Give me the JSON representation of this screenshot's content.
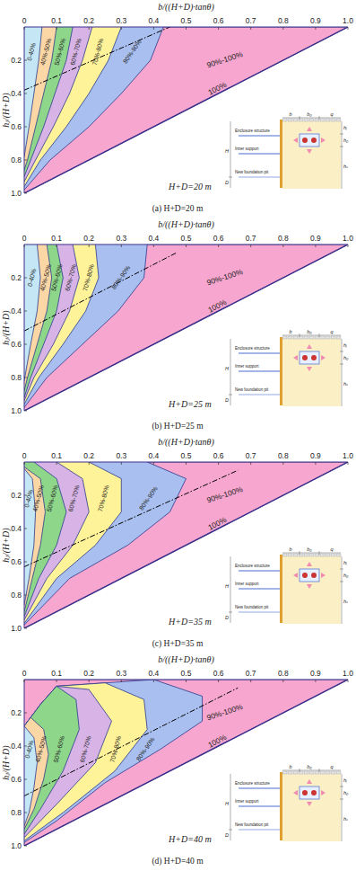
{
  "chart_data": [
    {
      "type": "contour",
      "title": "(a) H+D=20 m",
      "x_label": "b/((H+D)·tanθ)",
      "y_label": "hⱼ/(H+D)",
      "xlim": [
        0,
        1
      ],
      "ylim": [
        0,
        1
      ],
      "xticks": [
        0,
        0.1,
        0.2,
        0.3,
        0.4,
        0.5,
        0.6,
        0.7,
        0.8,
        0.9,
        {
          "value": 1,
          "label": "1.0"
        }
      ],
      "yticks": [
        0.2,
        0.4,
        0.6,
        0.8,
        {
          "value": 1,
          "label": "1.0"
        }
      ],
      "series": [
        {
          "name": "0-40%",
          "type": "area",
          "color": "#c4e6f5",
          "x": [
            0.055,
            0.045,
            0.03,
            0.015,
            0
          ],
          "values": [
            0,
            0.2,
            0.4,
            0.6,
            0.78
          ]
        },
        {
          "name": "40%-50%",
          "type": "area",
          "color": "#fcd7a6",
          "x": [
            0.1,
            0.085,
            0.06,
            0.035,
            0.01,
            0
          ],
          "values": [
            0,
            0.2,
            0.4,
            0.6,
            0.8,
            0.86
          ]
        },
        {
          "name": "50%-60%",
          "type": "area",
          "color": "#8ed68a",
          "x": [
            0.15,
            0.13,
            0.095,
            0.06,
            0.02,
            0
          ],
          "values": [
            0,
            0.2,
            0.4,
            0.6,
            0.8,
            0.9
          ]
        },
        {
          "name": "60%-70%",
          "type": "area",
          "color": "#d7b3e6",
          "x": [
            0.21,
            0.18,
            0.14,
            0.09,
            0.035,
            0
          ],
          "values": [
            0,
            0.2,
            0.4,
            0.6,
            0.8,
            0.93
          ]
        },
        {
          "name": "70%-80%",
          "type": "area",
          "color": "#fff39a",
          "x": [
            0.3,
            0.26,
            0.2,
            0.13,
            0.05,
            0
          ],
          "values": [
            0,
            0.2,
            0.4,
            0.6,
            0.8,
            0.96
          ]
        },
        {
          "name": "80%-90%",
          "type": "area",
          "color": "#a8bff0",
          "x": [
            0.43,
            0.39,
            0.3,
            0.2,
            0.08,
            0
          ],
          "values": [
            0,
            0.2,
            0.4,
            0.6,
            0.8,
            0.98
          ]
        },
        {
          "name": "90%-100%",
          "type": "area",
          "color": "#f7a6cf",
          "x": [
            0,
            1,
            0
          ],
          "values": [
            0,
            0,
            1
          ]
        },
        {
          "name": "100%",
          "type": "line",
          "color": "#3a2f8a",
          "line_style": "solid",
          "x": [
            0,
            1
          ],
          "values": [
            1,
            0
          ]
        },
        {
          "type": "line",
          "color": "#000000",
          "line_style": "dashdot",
          "x": [
            0,
            0.45
          ],
          "values": [
            0.38,
            0
          ]
        }
      ],
      "annotations": [
        "H+D=20 m",
        "Enclosure structure",
        "Inner support",
        "New foundation pit",
        "H",
        "D",
        "b",
        "b₀",
        "q",
        "hⱼ",
        "h₀",
        "hₛ"
      ]
    },
    {
      "type": "contour",
      "title": "(b) H+D=25 m",
      "x_label": "b/((H+D)·tanθ)",
      "y_label": "hⱼ/(H+D)",
      "xlim": [
        0,
        1
      ],
      "ylim": [
        0,
        1
      ],
      "xticks": [
        0,
        0.1,
        0.2,
        0.3,
        0.4,
        0.5,
        0.6,
        0.7,
        0.8,
        0.9,
        {
          "value": 1,
          "label": "1.0"
        }
      ],
      "yticks": [
        0.2,
        0.4,
        0.6,
        0.8,
        {
          "value": 1,
          "label": "1.0"
        }
      ],
      "series": [
        {
          "name": "0-40%",
          "type": "area",
          "color": "#c4e6f5",
          "x": [
            0.04,
            0.05,
            0.04,
            0.02,
            0
          ],
          "values": [
            0,
            0.2,
            0.4,
            0.6,
            0.82
          ]
        },
        {
          "name": "40%-50%",
          "type": "area",
          "color": "#fcd7a6",
          "x": [
            0.07,
            0.085,
            0.07,
            0.04,
            0.01,
            0
          ],
          "values": [
            0,
            0.2,
            0.4,
            0.6,
            0.8,
            0.88
          ]
        },
        {
          "name": "50%-60%",
          "type": "area",
          "color": "#8ed68a",
          "x": [
            0.1,
            0.12,
            0.1,
            0.06,
            0.02,
            0
          ],
          "values": [
            0,
            0.2,
            0.4,
            0.6,
            0.8,
            0.92
          ]
        },
        {
          "name": "60%-70%",
          "type": "area",
          "color": "#d7b3e6",
          "x": [
            0.15,
            0.17,
            0.14,
            0.09,
            0.03,
            0
          ],
          "values": [
            0,
            0.2,
            0.4,
            0.6,
            0.8,
            0.94
          ]
        },
        {
          "name": "70%-80%",
          "type": "area",
          "color": "#fff39a",
          "x": [
            0.22,
            0.23,
            0.19,
            0.12,
            0.045,
            0
          ],
          "values": [
            0,
            0.2,
            0.4,
            0.6,
            0.8,
            0.96
          ]
        },
        {
          "name": "80%-90%",
          "type": "area",
          "color": "#a8bff0",
          "x": [
            0.38,
            0.37,
            0.29,
            0.18,
            0.07,
            0
          ],
          "values": [
            0,
            0.2,
            0.4,
            0.6,
            0.8,
            0.98
          ]
        },
        {
          "name": "90%-100%",
          "type": "area",
          "color": "#f7a6cf",
          "x": [
            0,
            1,
            0
          ],
          "values": [
            0,
            0,
            1
          ]
        },
        {
          "name": "100%",
          "type": "line",
          "color": "#3a2f8a",
          "line_style": "solid",
          "x": [
            0,
            1
          ],
          "values": [
            1,
            0
          ]
        },
        {
          "type": "line",
          "color": "#000000",
          "line_style": "dashdot",
          "x": [
            0,
            0.47
          ],
          "values": [
            0.52,
            0.05
          ]
        }
      ],
      "annotations": [
        "H+D=25 m",
        "Enclosure structure",
        "Inner support",
        "New foundation pit",
        "H",
        "D",
        "b",
        "b₀",
        "q",
        "hⱼ",
        "h₀",
        "hₛ"
      ]
    },
    {
      "type": "contour",
      "title": "(c) H+D=35 m",
      "x_label": "b/((H+D)·tanθ)",
      "y_label": "hⱼ/(H+D)",
      "xlim": [
        0,
        1
      ],
      "ylim": [
        0,
        1
      ],
      "xticks": [
        0,
        0.1,
        0.2,
        0.3,
        0.4,
        0.5,
        0.6,
        0.7,
        0.8,
        0.9,
        {
          "value": 1,
          "label": "1.0"
        }
      ],
      "yticks": [
        0.2,
        0.4,
        0.6,
        0.8,
        {
          "value": 1,
          "label": "1.0"
        }
      ],
      "series": [
        {
          "name": "0-40%",
          "type": "area",
          "color": "#c4e6f5",
          "x": [
            0,
            0.025,
            0.035,
            0.03,
            0.015,
            0
          ],
          "values": [
            0.04,
            0.1,
            0.3,
            0.5,
            0.7,
            0.86
          ]
        },
        {
          "name": "40%-50%",
          "type": "area",
          "color": "#fcd7a6",
          "x": [
            0,
            0.05,
            0.065,
            0.05,
            0.025,
            0
          ],
          "values": [
            0.03,
            0.1,
            0.3,
            0.5,
            0.7,
            0.9
          ]
        },
        {
          "name": "50%-60%",
          "type": "area",
          "color": "#8ed68a",
          "x": [
            0.03,
            0.1,
            0.13,
            0.1,
            0.045,
            0
          ],
          "values": [
            0,
            0.1,
            0.3,
            0.5,
            0.7,
            0.93
          ]
        },
        {
          "name": "60%-70%",
          "type": "area",
          "color": "#d7b3e6",
          "x": [
            0.1,
            0.18,
            0.2,
            0.15,
            0.07,
            0
          ],
          "values": [
            0,
            0.1,
            0.3,
            0.5,
            0.7,
            0.95
          ]
        },
        {
          "name": "70%-80%",
          "type": "area",
          "color": "#fff39a",
          "x": [
            0.2,
            0.3,
            0.3,
            0.22,
            0.1,
            0
          ],
          "values": [
            0,
            0.1,
            0.3,
            0.5,
            0.7,
            0.97
          ]
        },
        {
          "name": "80%-90%",
          "type": "area",
          "color": "#a8bff0",
          "x": [
            0.38,
            0.5,
            0.45,
            0.32,
            0.14,
            0
          ],
          "values": [
            0,
            0.1,
            0.3,
            0.5,
            0.7,
            0.98
          ]
        },
        {
          "name": "90%-100%",
          "type": "area",
          "color": "#f7a6cf",
          "x": [
            0,
            1,
            0
          ],
          "values": [
            0,
            0,
            1
          ]
        },
        {
          "name": "100%",
          "type": "line",
          "color": "#3a2f8a",
          "line_style": "solid",
          "x": [
            0,
            1
          ],
          "values": [
            1,
            0
          ]
        },
        {
          "type": "line",
          "color": "#000000",
          "line_style": "dashdot",
          "x": [
            0,
            0.66
          ],
          "values": [
            0.63,
            0.05
          ]
        }
      ],
      "annotations": [
        "H+D=35 m",
        "Enclosure structure",
        "Inner support",
        "New foundation pit",
        "H",
        "D",
        "b",
        "b₀",
        "q",
        "hⱼ",
        "h₀",
        "hₛ"
      ]
    },
    {
      "type": "contour",
      "title": "(d) H+D=40 m",
      "x_label": "b/((H+D)·tanθ)",
      "y_label": "hⱼ/(H+D)",
      "xlim": [
        0,
        1
      ],
      "ylim": [
        0,
        1
      ],
      "xticks": [
        0,
        0.1,
        0.2,
        0.3,
        0.4,
        0.5,
        0.6,
        0.7,
        0.8,
        0.9,
        {
          "value": 1,
          "label": "1.0"
        }
      ],
      "yticks": [
        0.2,
        0.4,
        0.6,
        0.8,
        {
          "value": 1,
          "label": "1.0"
        }
      ],
      "series": [
        {
          "name": "0-40%",
          "type": "area",
          "color": "#c4e6f5",
          "x": [
            0,
            0.03,
            0.04,
            0.03,
            0.015,
            0
          ],
          "values": [
            0.28,
            0.35,
            0.5,
            0.65,
            0.8,
            0.88
          ]
        },
        {
          "name": "40%-50%",
          "type": "area",
          "color": "#fcd7a6",
          "x": [
            0,
            0.02,
            0.06,
            0.075,
            0.06,
            0.03,
            0
          ],
          "values": [
            0.28,
            0.228,
            0.3,
            0.45,
            0.6,
            0.78,
            0.9
          ]
        },
        {
          "name": "50%-60%",
          "type": "area",
          "color": "#8ed68a",
          "x": [
            0,
            0.05,
            0.1,
            0.16,
            0.17,
            0.12,
            0.05,
            0
          ],
          "values": [
            0.28,
            0.15,
            0.04,
            0.12,
            0.3,
            0.55,
            0.78,
            0.93
          ]
        },
        {
          "name": "60%-70%",
          "type": "area",
          "color": "#d7b3e6",
          "x": [
            0,
            0.05,
            0.1,
            0.2,
            0.27,
            0.22,
            0.1,
            0
          ],
          "values": [
            0.28,
            0.15,
            0.04,
            0.06,
            0.25,
            0.5,
            0.75,
            0.95
          ]
        },
        {
          "name": "70%-80%",
          "type": "area",
          "color": "#fff39a",
          "x": [
            0,
            0.05,
            0.1,
            0.25,
            0.37,
            0.38,
            0.28,
            0.12,
            0
          ],
          "values": [
            0.28,
            0.15,
            0.04,
            0.02,
            0.12,
            0.3,
            0.55,
            0.8,
            0.97
          ]
        },
        {
          "name": "80%-90%",
          "type": "area",
          "color": "#a8bff0",
          "x": [
            0,
            0.05,
            0.1,
            0.4,
            0.55,
            0.55,
            0.42,
            0.25,
            0.1,
            0
          ],
          "values": [
            0.28,
            0.15,
            0.04,
            0,
            0.1,
            0.25,
            0.42,
            0.62,
            0.85,
            0.98
          ]
        },
        {
          "name": "90%-100%",
          "type": "area",
          "color": "#f7a6cf",
          "x": [
            0,
            1,
            0
          ],
          "values": [
            0,
            0,
            1
          ]
        },
        {
          "name": "100%",
          "type": "line",
          "color": "#3a2f8a",
          "line_style": "solid",
          "x": [
            0,
            1
          ],
          "values": [
            1,
            0
          ]
        },
        {
          "type": "line",
          "color": "#000000",
          "line_style": "dashdot",
          "x": [
            0,
            0.66
          ],
          "values": [
            0.7,
            0.05
          ]
        }
      ],
      "annotations": [
        "H+D=40 m",
        "Enclosure structure",
        "Inner support",
        "New foundation pit",
        "H",
        "D",
        "b",
        "b₀",
        "q",
        "hⱼ",
        "h₀",
        "hₛ"
      ]
    }
  ]
}
